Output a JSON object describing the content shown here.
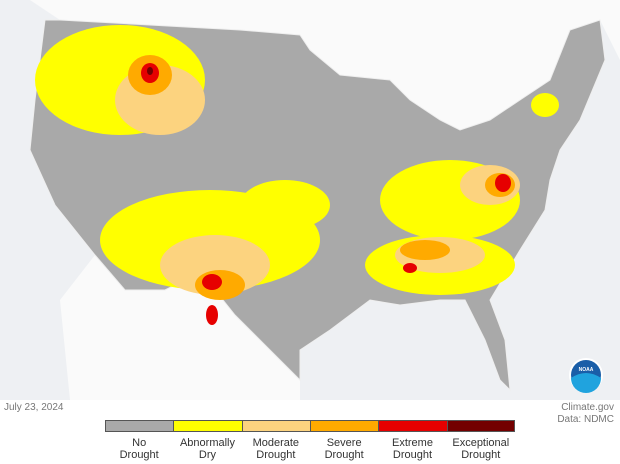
{
  "date": "July 23, 2024",
  "source": "Climate.gov",
  "credit": "Data: NDMC",
  "logo": "NOAA",
  "legend": [
    {
      "label": "No Drought",
      "color": "#a9a9a9"
    },
    {
      "label": "Abnormally Dry",
      "color": "#ffff00"
    },
    {
      "label": "Moderate Drought",
      "color": "#fcd37f"
    },
    {
      "label": "Severe Drought",
      "color": "#ffaa00"
    },
    {
      "label": "Extreme Drought",
      "color": "#e60000"
    },
    {
      "label": "Exceptional Drought",
      "color": "#730000"
    }
  ]
}
